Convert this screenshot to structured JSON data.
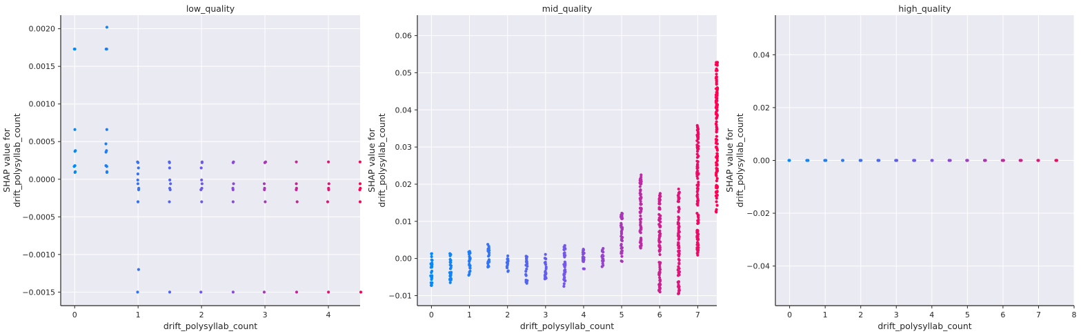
{
  "colors": {
    "low": "#008bfb",
    "high": "#ff0052",
    "background": "#eaeaf2",
    "grid": "#ffffff",
    "axis": "#262626"
  },
  "chart_data": [
    {
      "type": "scatter",
      "title": "low_quality",
      "xlabel": "drift_polysyllab_count",
      "ylabel_line1": "SHAP value for",
      "ylabel_line2": "drift_polysyllab_count",
      "xlim": [
        -0.22,
        4.5
      ],
      "ylim": [
        -0.00168,
        0.00218
      ],
      "xticks": [
        0,
        1,
        2,
        3,
        4
      ],
      "xtick_labels": [
        "0",
        "1",
        "2",
        "3",
        "4"
      ],
      "yticks": [
        -0.0015,
        -0.001,
        -0.0005,
        0.0,
        0.0005,
        0.001,
        0.0015,
        0.002
      ],
      "ytick_labels": [
        "−0.0015",
        "−0.0010",
        "−0.0005",
        "0.0000",
        "0.0005",
        "0.0010",
        "0.0015",
        "0.0020"
      ],
      "grid": true,
      "color_by_x_max": 4.5,
      "points": [
        {
          "x": 0,
          "ys": [
            0.00173,
            0.00173,
            0.00066,
            0.00038,
            0.00037,
            0.00018,
            0.00017,
            0.0001,
            9e-05
          ]
        },
        {
          "x": 0.5,
          "ys": [
            0.00202,
            0.00173,
            0.00173,
            0.00066,
            0.00047,
            0.00038,
            0.00036,
            0.00018,
            0.00017,
            0.0001,
            9e-05
          ]
        },
        {
          "x": 1,
          "ys": [
            0.00023,
            0.00022,
            0.00015,
            7e-05,
            -1e-05,
            -6e-05,
            -0.00012,
            -0.00014,
            -0.0003,
            -0.0003,
            -0.0012,
            -0.0015
          ]
        },
        {
          "x": 1.5,
          "ys": [
            0.00023,
            0.00022,
            0.00015,
            -1e-05,
            -6e-05,
            -0.00012,
            -0.00014,
            -0.0003,
            -0.0015
          ]
        },
        {
          "x": 2,
          "ys": [
            0.00023,
            0.00022,
            0.00015,
            -1e-05,
            -6e-05,
            -0.00012,
            -0.00014,
            -0.0003,
            -0.0015
          ]
        },
        {
          "x": 2.5,
          "ys": [
            0.00023,
            0.00022,
            -6e-05,
            -0.00012,
            -0.00014,
            -0.0003,
            -0.0015
          ]
        },
        {
          "x": 3,
          "ys": [
            0.00023,
            0.00022,
            -6e-05,
            -0.00012,
            -0.00014,
            -0.0003,
            -0.0015
          ]
        },
        {
          "x": 3.5,
          "ys": [
            0.00023,
            -6e-05,
            -0.00012,
            -0.00014,
            -0.0003,
            -0.0015
          ]
        },
        {
          "x": 4,
          "ys": [
            0.00023,
            -6e-05,
            -0.00012,
            -0.00014,
            -0.0003,
            -0.0015
          ]
        },
        {
          "x": 4.5,
          "ys": [
            0.00023,
            -6e-05,
            -0.00012,
            -0.00014,
            -0.0003,
            -0.0015
          ]
        }
      ]
    },
    {
      "type": "scatter",
      "title": "mid_quality",
      "xlabel": "drift_polysyllab_count",
      "ylabel_line1": "SHAP value for",
      "ylabel_line2": "drift_polysyllab_count",
      "xlim": [
        -0.37,
        7.5
      ],
      "ylim": [
        -0.0127,
        0.0655
      ],
      "xticks": [
        0,
        1,
        2,
        3,
        4,
        5,
        6,
        7
      ],
      "xtick_labels": [
        "0",
        "1",
        "2",
        "3",
        "4",
        "5",
        "6",
        "7"
      ],
      "yticks": [
        -0.01,
        0.0,
        0.01,
        0.02,
        0.03,
        0.04,
        0.05,
        0.06
      ],
      "ytick_labels": [
        "−0.01",
        "0.00",
        "0.01",
        "0.02",
        "0.03",
        "0.04",
        "0.05",
        "0.06"
      ],
      "grid": true,
      "color_by_x_max": 7.5,
      "columns": [
        {
          "x": 0,
          "min": -0.0073,
          "max": 0.0013
        },
        {
          "x": 0.5,
          "min": -0.0065,
          "max": 0.0013
        },
        {
          "x": 1,
          "min": -0.0045,
          "max": 0.0019
        },
        {
          "x": 1.5,
          "min": -0.0023,
          "max": 0.0038
        },
        {
          "x": 2,
          "min": -0.0035,
          "max": 0.0007
        },
        {
          "x": 2.5,
          "min": -0.0067,
          "max": 0.0006
        },
        {
          "x": 3,
          "min": -0.0055,
          "max": 0.0011
        },
        {
          "x": 3.5,
          "min": -0.0075,
          "max": 0.0035
        },
        {
          "x": 4,
          "min": -0.0028,
          "max": 0.0025
        },
        {
          "x": 4.5,
          "min": -0.0022,
          "max": 0.0027
        },
        {
          "x": 5,
          "min": -0.0008,
          "max": 0.0122
        },
        {
          "x": 5.5,
          "min": 0.0028,
          "max": 0.0225
        },
        {
          "x": 6,
          "min": -0.009,
          "max": 0.0175
        },
        {
          "x": 6.5,
          "min": -0.0095,
          "max": 0.0187
        },
        {
          "x": 7,
          "min": 0.0009,
          "max": 0.0358
        },
        {
          "x": 7.5,
          "min": 0.0125,
          "max": 0.0528
        }
      ]
    },
    {
      "type": "scatter",
      "title": "high_quality",
      "xlabel": "drift_polysyllab_count",
      "ylabel_line1": "SHAP value for",
      "ylabel_line2": "drift_polysyllab_count",
      "xlim": [
        -0.4,
        8
      ],
      "ylim": [
        -0.055,
        0.055
      ],
      "xticks": [
        0,
        1,
        2,
        3,
        4,
        5,
        6,
        7,
        8
      ],
      "xtick_labels": [
        "0",
        "1",
        "2",
        "3",
        "4",
        "5",
        "6",
        "7",
        "8"
      ],
      "yticks": [
        -0.04,
        -0.02,
        0.0,
        0.02,
        0.04
      ],
      "ytick_labels": [
        "−0.04",
        "−0.02",
        "0.00",
        "0.02",
        "0.04"
      ],
      "grid": true,
      "color_by_x_max": 8,
      "x_values": [
        0,
        0.5,
        1,
        1.5,
        2,
        2.5,
        3,
        3.5,
        4,
        4.5,
        5,
        5.5,
        6,
        6.5,
        7,
        7.5
      ],
      "y_value": 0
    }
  ]
}
